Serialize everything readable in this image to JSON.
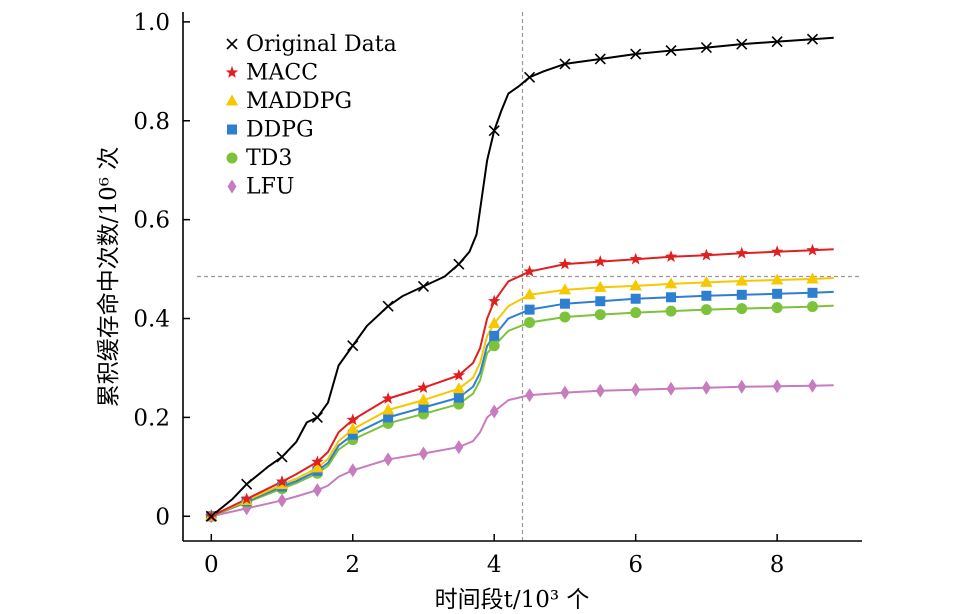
{
  "chart_data": {
    "type": "line",
    "xlabel": "时间段t/10³ 个",
    "ylabel": "累积缓存命中次数/10⁶ 次",
    "xlim": [
      -0.4,
      9.2
    ],
    "ylim": [
      -0.05,
      1.02
    ],
    "x_ticks": [
      0,
      2,
      4,
      6,
      8
    ],
    "y_ticks": [
      0,
      0.2,
      0.4,
      0.6,
      0.8,
      1.0
    ],
    "x_tick_labels": [
      "0",
      "2",
      "4",
      "6",
      "8"
    ],
    "y_tick_labels": [
      "0",
      "0.2",
      "0.4",
      "0.6",
      "0.8",
      "1.0"
    ],
    "grid": false,
    "legend_position": "top-left",
    "reference_lines": {
      "vertical_x": 4.4,
      "horizontal_y": 0.485
    },
    "marker_x": [
      0,
      0.5,
      1,
      1.5,
      2,
      2.5,
      3,
      3.5,
      4,
      4.5,
      5,
      5.5,
      6,
      6.5,
      7,
      7.5,
      8,
      8.5
    ],
    "series": [
      {
        "name": "Original Data",
        "marker": "x",
        "color": "#000000",
        "x": [
          0,
          0.3,
          0.5,
          0.8,
          1.0,
          1.2,
          1.35,
          1.5,
          1.65,
          1.8,
          2.0,
          2.2,
          2.5,
          2.7,
          3.0,
          3.3,
          3.5,
          3.65,
          3.75,
          3.82,
          3.9,
          4.0,
          4.1,
          4.2,
          4.35,
          4.5,
          4.7,
          5.0,
          5.5,
          6.0,
          6.5,
          7.0,
          7.5,
          8.0,
          8.5,
          8.8
        ],
        "y": [
          0,
          0.035,
          0.065,
          0.1,
          0.12,
          0.15,
          0.19,
          0.2,
          0.23,
          0.305,
          0.345,
          0.385,
          0.425,
          0.445,
          0.465,
          0.485,
          0.51,
          0.535,
          0.57,
          0.64,
          0.72,
          0.78,
          0.82,
          0.855,
          0.87,
          0.888,
          0.9,
          0.915,
          0.925,
          0.935,
          0.942,
          0.948,
          0.955,
          0.96,
          0.965,
          0.968
        ]
      },
      {
        "name": "MACC",
        "marker": "star",
        "color": "#e02020",
        "x": [
          0,
          0.5,
          1.0,
          1.2,
          1.5,
          1.65,
          1.8,
          2.0,
          2.5,
          3.0,
          3.5,
          3.7,
          3.8,
          3.9,
          4.0,
          4.2,
          4.5,
          5.0,
          5.5,
          6.0,
          6.5,
          7.0,
          7.5,
          8.0,
          8.5,
          8.8
        ],
        "y": [
          0,
          0.035,
          0.07,
          0.085,
          0.11,
          0.13,
          0.17,
          0.195,
          0.238,
          0.26,
          0.285,
          0.31,
          0.34,
          0.4,
          0.435,
          0.475,
          0.495,
          0.51,
          0.515,
          0.52,
          0.525,
          0.528,
          0.532,
          0.535,
          0.538,
          0.54
        ]
      },
      {
        "name": "MADDPG",
        "marker": "triangle",
        "color": "#f5c800",
        "x": [
          0,
          0.5,
          1.0,
          1.2,
          1.5,
          1.65,
          1.8,
          2.0,
          2.5,
          3.0,
          3.5,
          3.7,
          3.8,
          3.9,
          4.0,
          4.2,
          4.5,
          5.0,
          5.5,
          6.0,
          6.5,
          7.0,
          7.5,
          8.0,
          8.5,
          8.8
        ],
        "y": [
          0,
          0.032,
          0.064,
          0.076,
          0.098,
          0.116,
          0.152,
          0.176,
          0.215,
          0.235,
          0.258,
          0.28,
          0.31,
          0.365,
          0.39,
          0.425,
          0.448,
          0.458,
          0.463,
          0.466,
          0.47,
          0.473,
          0.476,
          0.478,
          0.48,
          0.482
        ]
      },
      {
        "name": "DDPG",
        "marker": "square",
        "color": "#2f7fd1",
        "x": [
          0,
          0.5,
          1.0,
          1.2,
          1.5,
          1.65,
          1.8,
          2.0,
          2.5,
          3.0,
          3.5,
          3.7,
          3.8,
          3.9,
          4.0,
          4.2,
          4.5,
          5.0,
          5.5,
          6.0,
          6.5,
          7.0,
          7.5,
          8.0,
          8.5,
          8.8
        ],
        "y": [
          0,
          0.03,
          0.06,
          0.071,
          0.092,
          0.108,
          0.143,
          0.165,
          0.2,
          0.22,
          0.24,
          0.262,
          0.29,
          0.345,
          0.365,
          0.4,
          0.418,
          0.43,
          0.435,
          0.44,
          0.443,
          0.446,
          0.448,
          0.45,
          0.452,
          0.454
        ]
      },
      {
        "name": "TD3",
        "marker": "circle",
        "color": "#7cc23a",
        "x": [
          0,
          0.5,
          1.0,
          1.2,
          1.5,
          1.65,
          1.8,
          2.0,
          2.5,
          3.0,
          3.5,
          3.7,
          3.8,
          3.9,
          4.0,
          4.2,
          4.5,
          5.0,
          5.5,
          6.0,
          6.5,
          7.0,
          7.5,
          8.0,
          8.5,
          8.8
        ],
        "y": [
          0,
          0.028,
          0.056,
          0.067,
          0.087,
          0.102,
          0.135,
          0.155,
          0.188,
          0.207,
          0.227,
          0.248,
          0.275,
          0.33,
          0.345,
          0.375,
          0.392,
          0.403,
          0.408,
          0.412,
          0.415,
          0.418,
          0.42,
          0.422,
          0.424,
          0.426
        ]
      },
      {
        "name": "LFU",
        "marker": "diamond",
        "color": "#c77cc0",
        "x": [
          0,
          0.5,
          1.0,
          1.2,
          1.5,
          1.65,
          1.8,
          2.0,
          2.5,
          3.0,
          3.5,
          3.7,
          3.8,
          3.9,
          4.0,
          4.2,
          4.5,
          5.0,
          5.5,
          6.0,
          6.5,
          7.0,
          7.5,
          8.0,
          8.5,
          8.8
        ],
        "y": [
          0,
          0.016,
          0.032,
          0.04,
          0.053,
          0.062,
          0.08,
          0.093,
          0.115,
          0.127,
          0.14,
          0.152,
          0.17,
          0.2,
          0.212,
          0.235,
          0.245,
          0.25,
          0.254,
          0.256,
          0.258,
          0.26,
          0.262,
          0.263,
          0.264,
          0.265
        ]
      }
    ]
  }
}
